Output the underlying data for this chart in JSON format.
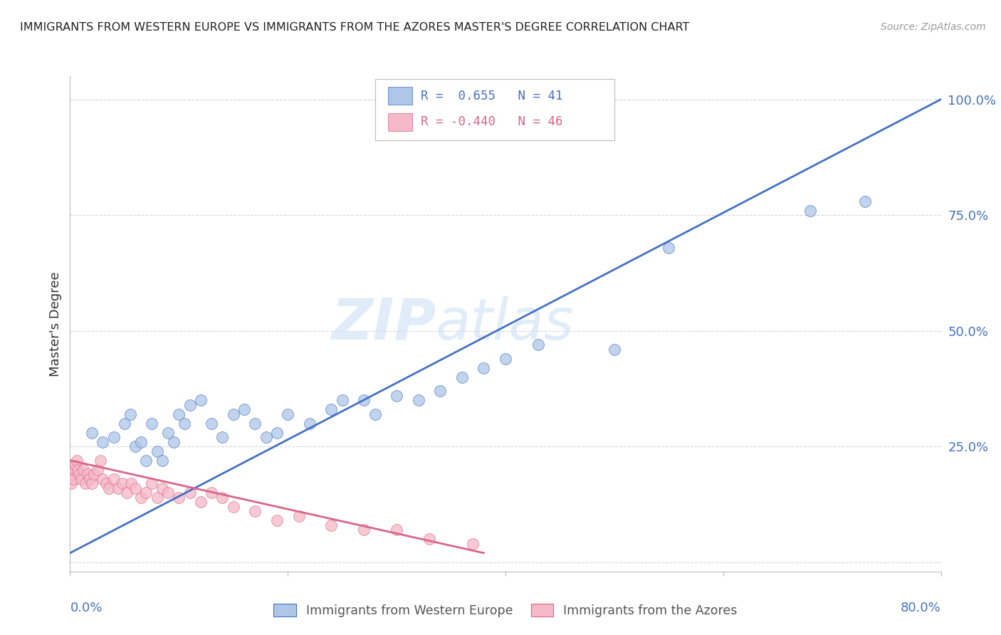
{
  "title": "IMMIGRANTS FROM WESTERN EUROPE VS IMMIGRANTS FROM THE AZORES MASTER'S DEGREE CORRELATION CHART",
  "source": "Source: ZipAtlas.com",
  "ylabel": "Master's Degree",
  "y_tick_labels": [
    "",
    "25.0%",
    "50.0%",
    "75.0%",
    "100.0%"
  ],
  "x_lim": [
    0.0,
    0.8
  ],
  "y_lim": [
    -0.02,
    1.05
  ],
  "blue_color": "#aec6e8",
  "blue_line_color": "#4472c4",
  "pink_color": "#f5b8c8",
  "pink_line_color": "#d9668a",
  "watermark_zip": "ZIP",
  "watermark_atlas": "atlas",
  "background_color": "#ffffff",
  "grid_color": "#cccccc",
  "blue_scatter_x": [
    0.02,
    0.03,
    0.04,
    0.05,
    0.055,
    0.06,
    0.065,
    0.07,
    0.075,
    0.08,
    0.085,
    0.09,
    0.095,
    0.1,
    0.105,
    0.11,
    0.12,
    0.13,
    0.14,
    0.15,
    0.16,
    0.17,
    0.18,
    0.19,
    0.2,
    0.22,
    0.24,
    0.25,
    0.27,
    0.28,
    0.3,
    0.32,
    0.34,
    0.36,
    0.38,
    0.4,
    0.43,
    0.5,
    0.55,
    0.68,
    0.73
  ],
  "blue_scatter_y": [
    0.28,
    0.26,
    0.27,
    0.3,
    0.32,
    0.25,
    0.26,
    0.22,
    0.3,
    0.24,
    0.22,
    0.28,
    0.26,
    0.32,
    0.3,
    0.34,
    0.35,
    0.3,
    0.27,
    0.32,
    0.33,
    0.3,
    0.27,
    0.28,
    0.32,
    0.3,
    0.33,
    0.35,
    0.35,
    0.32,
    0.36,
    0.35,
    0.37,
    0.4,
    0.42,
    0.44,
    0.47,
    0.46,
    0.68,
    0.76,
    0.78
  ],
  "pink_scatter_x": [
    0.001,
    0.002,
    0.003,
    0.004,
    0.005,
    0.006,
    0.007,
    0.008,
    0.01,
    0.012,
    0.014,
    0.016,
    0.018,
    0.02,
    0.022,
    0.025,
    0.028,
    0.03,
    0.033,
    0.036,
    0.04,
    0.044,
    0.048,
    0.052,
    0.056,
    0.06,
    0.065,
    0.07,
    0.075,
    0.08,
    0.085,
    0.09,
    0.1,
    0.11,
    0.12,
    0.13,
    0.14,
    0.15,
    0.17,
    0.19,
    0.21,
    0.24,
    0.27,
    0.3,
    0.33,
    0.37
  ],
  "pink_scatter_y": [
    0.17,
    0.19,
    0.18,
    0.2,
    0.21,
    0.22,
    0.2,
    0.19,
    0.18,
    0.2,
    0.17,
    0.19,
    0.18,
    0.17,
    0.19,
    0.2,
    0.22,
    0.18,
    0.17,
    0.16,
    0.18,
    0.16,
    0.17,
    0.15,
    0.17,
    0.16,
    0.14,
    0.15,
    0.17,
    0.14,
    0.16,
    0.15,
    0.14,
    0.15,
    0.13,
    0.15,
    0.14,
    0.12,
    0.11,
    0.09,
    0.1,
    0.08,
    0.07,
    0.07,
    0.05,
    0.04
  ],
  "blue_line_x": [
    0.0,
    0.8
  ],
  "blue_line_y": [
    0.02,
    1.0
  ],
  "pink_line_x": [
    0.0,
    0.38
  ],
  "pink_line_y": [
    0.22,
    0.02
  ]
}
